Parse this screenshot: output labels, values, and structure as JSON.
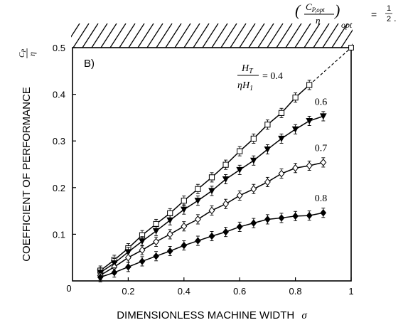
{
  "chart_data": {
    "type": "line",
    "panel_label": "B)",
    "xlabel": "DIMENSIONLESS MACHINE WIDTH",
    "xlabel_symbol": "σ",
    "ylabel": "COEFFICIENT OF PERFORMANCE",
    "ylabel_symbol_num": "C",
    "ylabel_symbol_sub": "P",
    "ylabel_symbol_den": "η",
    "xlim": [
      0,
      1
    ],
    "ylim": [
      0,
      0.5
    ],
    "x_ticks": [
      0.2,
      0.4,
      0.6,
      0.8,
      1
    ],
    "x_tick_labels": [
      "0.2",
      "0.4",
      "0.6",
      "0.8",
      "1"
    ],
    "y_ticks": [
      0.1,
      0.2,
      0.3,
      0.4,
      0.5
    ],
    "y_tick_labels": [
      "0.1",
      "0.2",
      "0.3",
      "0.4",
      "0.5"
    ],
    "origin_label": "0",
    "grid": false,
    "top_boundary": "hatched",
    "annotation": {
      "lhs_num": "C",
      "lhs_num_sub": "P,opt",
      "lhs_den": "η",
      "lhs_sub": "opt",
      "equals": "=",
      "rhs_num": "1",
      "rhs_den": "2",
      "trailing": "."
    },
    "ratio_label": {
      "num": "H",
      "num_sub": "T",
      "den": "ηH",
      "den_sub": "1",
      "equals": "= 0.4"
    },
    "x": [
      0.1,
      0.15,
      0.2,
      0.25,
      0.3,
      0.35,
      0.4,
      0.45,
      0.5,
      0.55,
      0.6,
      0.65,
      0.7,
      0.75,
      0.8,
      0.85,
      0.9
    ],
    "series": [
      {
        "name": "0.4",
        "marker": "square-open",
        "x": [
          0.1,
          0.15,
          0.2,
          0.25,
          0.3,
          0.35,
          0.4,
          0.45,
          0.5,
          0.55,
          0.6,
          0.65,
          0.7,
          0.75,
          0.8,
          0.85
        ],
        "values": [
          0.022,
          0.045,
          0.07,
          0.098,
          0.122,
          0.145,
          0.172,
          0.197,
          0.222,
          0.249,
          0.278,
          0.305,
          0.335,
          0.36,
          0.393,
          0.42
        ]
      },
      {
        "name": "0.6",
        "marker": "triangle-down-filled",
        "values": [
          0.018,
          0.038,
          0.062,
          0.085,
          0.107,
          0.13,
          0.153,
          0.172,
          0.193,
          0.218,
          0.238,
          0.258,
          0.282,
          0.305,
          0.325,
          0.343,
          0.353
        ]
      },
      {
        "name": "0.7",
        "marker": "diamond-open",
        "values": [
          0.012,
          0.03,
          0.05,
          0.066,
          0.084,
          0.1,
          0.117,
          0.132,
          0.151,
          0.165,
          0.183,
          0.197,
          0.212,
          0.23,
          0.242,
          0.247,
          0.254
        ]
      },
      {
        "name": "0.8",
        "marker": "diamond-filled",
        "values": [
          0.008,
          0.018,
          0.03,
          0.042,
          0.053,
          0.064,
          0.076,
          0.086,
          0.096,
          0.105,
          0.116,
          0.124,
          0.132,
          0.135,
          0.139,
          0.14,
          0.146
        ]
      }
    ],
    "dashed_extension": {
      "from": [
        0.85,
        0.42
      ],
      "to": [
        1,
        0.5
      ]
    },
    "optimum_point": [
      1,
      0.5
    ],
    "error_bar_halfwidth": 0.01
  }
}
